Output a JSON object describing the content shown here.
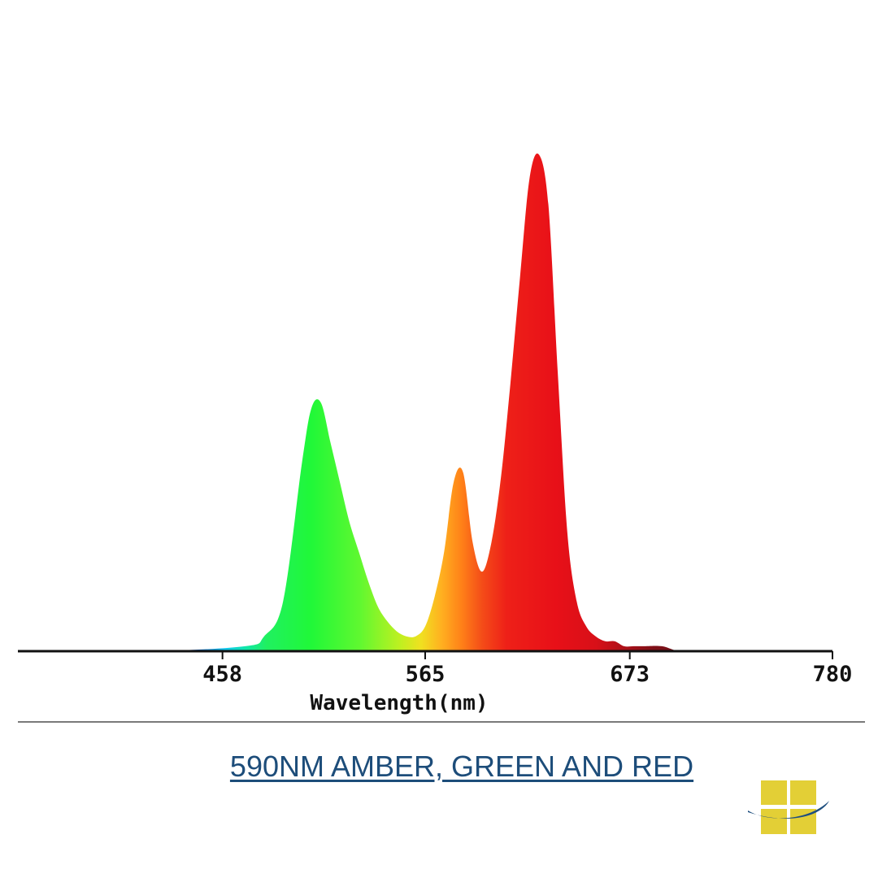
{
  "chart_data": {
    "type": "area",
    "title": "",
    "xlabel": "Wavelength(nm)",
    "ylabel": "",
    "xlim": [
      350,
      780
    ],
    "ylim": [
      0,
      1.0
    ],
    "grid": false,
    "x_ticks": [
      458,
      565,
      673,
      780
    ],
    "x_tick_labels": [
      "458",
      "565",
      "673",
      "780"
    ],
    "series": [
      {
        "x": [
          350,
          420,
          470,
          480,
          490,
          500,
          505,
          510,
          515,
          520,
          525,
          530,
          535,
          540,
          545,
          550,
          555,
          560,
          565,
          570,
          575,
          580,
          585,
          590,
          595,
          600,
          605,
          610,
          615,
          620,
          625,
          630,
          635,
          640,
          645,
          650,
          655,
          660,
          665,
          670,
          675,
          680,
          690,
          700,
          720,
          780
        ],
        "values": [
          0.0,
          0.0,
          0.01,
          0.03,
          0.1,
          0.38,
          0.49,
          0.5,
          0.42,
          0.34,
          0.26,
          0.2,
          0.14,
          0.09,
          0.06,
          0.04,
          0.03,
          0.03,
          0.05,
          0.11,
          0.2,
          0.34,
          0.36,
          0.22,
          0.16,
          0.22,
          0.35,
          0.54,
          0.75,
          0.95,
          1.0,
          0.9,
          0.56,
          0.24,
          0.1,
          0.05,
          0.03,
          0.02,
          0.02,
          0.01,
          0.01,
          0.01,
          0.01,
          0.0,
          0.0,
          0.0
        ]
      }
    ]
  },
  "caption": {
    "text": "590NM AMBER, GREEN AND RED"
  },
  "colors": {
    "axis": "#111111",
    "divider": "#7a7a7a",
    "caption": "#1d4d7a",
    "logo_yellow": "#e3cf36",
    "logo_blue": "#1f4f7f"
  },
  "logo": {
    "icon": "window-swoosh-logo"
  }
}
